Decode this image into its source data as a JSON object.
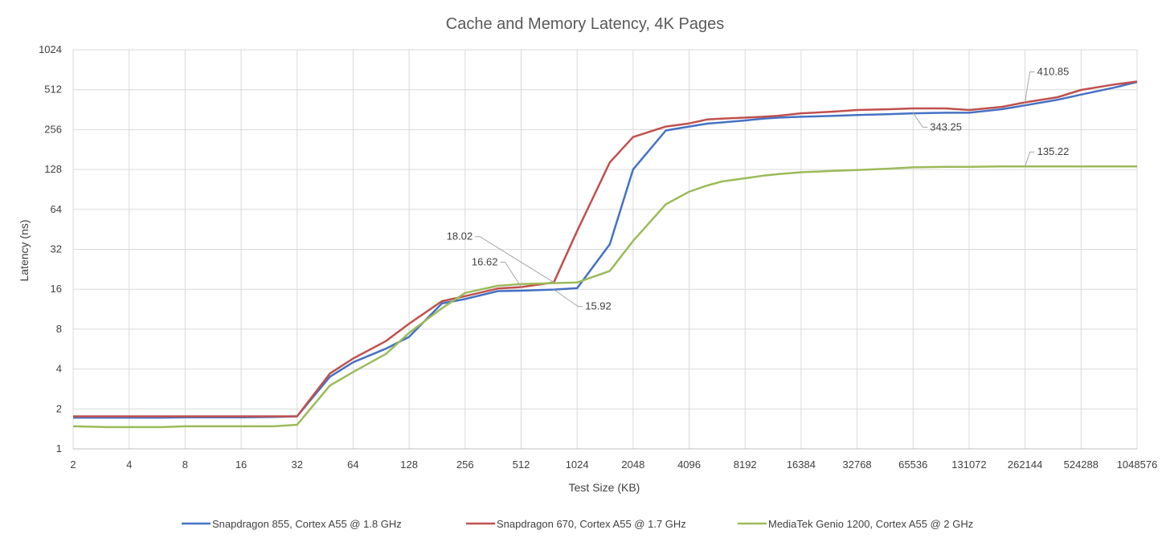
{
  "chart_data": {
    "type": "line",
    "title": "Cache and Memory Latency, 4K Pages",
    "xlabel": "Test Size (KB)",
    "ylabel": "Latency (ns)",
    "x_scale": "log2",
    "y_scale": "log2",
    "xlim": [
      2,
      1048576
    ],
    "ylim": [
      1,
      1024
    ],
    "x_ticks": [
      "2",
      "4",
      "8",
      "16",
      "32",
      "64",
      "128",
      "256",
      "512",
      "1024",
      "2048",
      "4096",
      "8192",
      "16384",
      "32768",
      "65536",
      "131072",
      "262144",
      "524288",
      "1048576"
    ],
    "y_ticks": [
      "1",
      "2",
      "4",
      "8",
      "16",
      "32",
      "64",
      "128",
      "256",
      "512",
      "1024"
    ],
    "grid": true,
    "legend_position": "bottom",
    "x": [
      2,
      3,
      4,
      6,
      8,
      12,
      16,
      24,
      32,
      48,
      64,
      96,
      128,
      192,
      256,
      384,
      512,
      768,
      1024,
      1536,
      2048,
      3072,
      4096,
      5120,
      6144,
      8192,
      10240,
      12288,
      16384,
      24576,
      32768,
      49152,
      65536,
      98304,
      131072,
      196608,
      262144,
      393216,
      524288,
      786432,
      1048576
    ],
    "series": [
      {
        "name": "Snapdragon 855, Cortex A55 @ 1.8 GHz",
        "color": "#4472C4",
        "values": [
          1.72,
          1.72,
          1.72,
          1.72,
          1.73,
          1.73,
          1.73,
          1.74,
          1.76,
          3.5,
          4.5,
          5.7,
          7.0,
          12.5,
          13.5,
          15.5,
          15.6,
          15.9,
          16.3,
          35.0,
          128.0,
          252.0,
          270.0,
          284.0,
          290.0,
          300.0,
          310.0,
          315.0,
          320.0,
          325.0,
          330.0,
          335.0,
          340.0,
          343.25,
          343.0,
          365.0,
          390.0,
          430.0,
          470.0,
          530.0,
          585.0
        ]
      },
      {
        "name": "Snapdragon 670, Cortex A55 @ 1.7 GHz",
        "color": "#C0504D",
        "values": [
          1.76,
          1.76,
          1.76,
          1.76,
          1.76,
          1.76,
          1.76,
          1.76,
          1.76,
          3.7,
          4.8,
          6.5,
          8.8,
          13.0,
          14.2,
          16.2,
          16.62,
          18.02,
          44.0,
          145.0,
          225.0,
          270.0,
          285.0,
          305.0,
          310.0,
          315.0,
          320.0,
          325.0,
          340.0,
          350.0,
          360.0,
          365.0,
          370.0,
          370.0,
          360.0,
          380.0,
          410.85,
          450.0,
          510.0,
          560.0,
          590.0
        ]
      },
      {
        "name": "MediaTek Genio 1200, Cortex A55 @ 2 GHz",
        "color": "#9BBB59",
        "values": [
          1.48,
          1.46,
          1.46,
          1.46,
          1.48,
          1.48,
          1.48,
          1.48,
          1.52,
          3.0,
          3.8,
          5.2,
          7.5,
          11.5,
          15.0,
          17.0,
          17.5,
          17.8,
          18.0,
          22.0,
          37.0,
          70.0,
          87.0,
          97.0,
          104.0,
          110.0,
          115.0,
          118.0,
          122.0,
          125.0,
          127.0,
          130.0,
          133.0,
          134.0,
          134.0,
          135.0,
          135.22,
          135.2,
          135.2,
          135.2,
          135.2
        ]
      }
    ],
    "annotations": [
      {
        "text": "410.85",
        "x": 262144,
        "y": 410.85
      },
      {
        "text": "343.25",
        "x": 65536,
        "y": 343.25
      },
      {
        "text": "135.22",
        "x": 262144,
        "y": 135.22
      },
      {
        "text": "18.02",
        "x": 768,
        "y": 18.02
      },
      {
        "text": "16.62",
        "x": 512,
        "y": 16.62
      },
      {
        "text": "15.92",
        "x": 768,
        "y": 15.92
      }
    ]
  }
}
